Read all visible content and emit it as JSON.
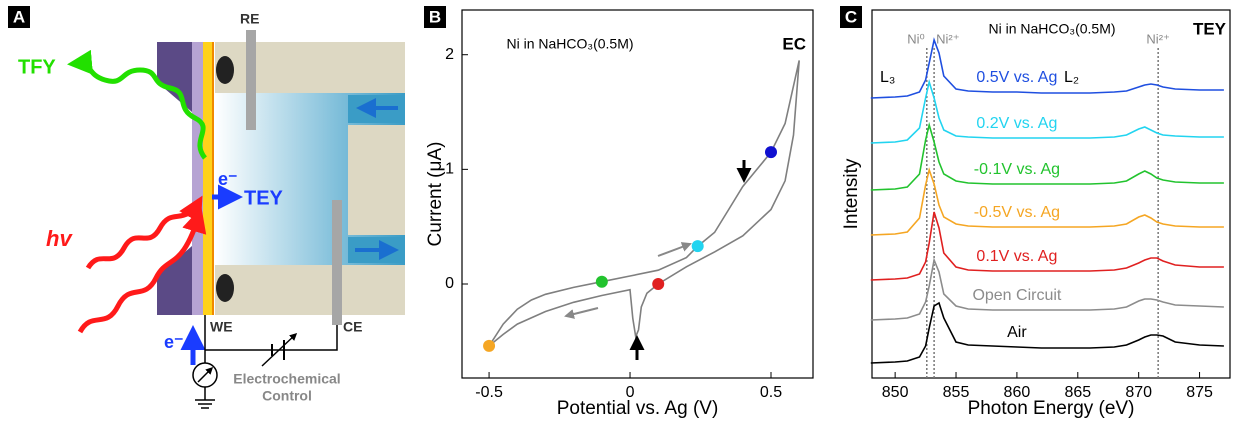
{
  "diagram": {
    "panel_label": "A",
    "labels": {
      "tfy": "TFY",
      "re": "RE",
      "electron_top": "e⁻",
      "tey": "TEY",
      "hv": "hv",
      "we": "WE",
      "ce": "CE",
      "electron_bottom": "e⁻",
      "control_1": "Electrochemical",
      "control_2": "Control"
    }
  },
  "chart_data": [
    {
      "type": "line",
      "panel_label": "B",
      "x_label": "Potential vs. Ag (V)",
      "y_label": "Current (μA)",
      "annotations": [
        "Ni in NaHCO₃(0.5M)",
        "EC"
      ],
      "xlim": [
        -0.596,
        0.649
      ],
      "ylim": [
        -0.82,
        2.39
      ],
      "xticks": [
        -0.5,
        0,
        0.5
      ],
      "yticks": [
        0,
        1,
        2
      ],
      "series": [
        {
          "kind": "line",
          "color": "#7f7f7f",
          "x": [
            -0.5,
            -0.45,
            -0.4,
            -0.35,
            -0.3,
            -0.2,
            -0.1,
            0,
            0.1,
            0.2,
            0.24,
            0.3,
            0.35,
            0.4,
            0.45,
            0.5,
            0.55,
            0.6,
            0.58,
            0.55,
            0.5,
            0.4,
            0.3,
            0.2,
            0.1,
            0.06,
            0.04,
            0.03,
            0.02,
            0.01,
            0,
            -0.1,
            -0.2,
            -0.3,
            -0.4,
            -0.45,
            -0.5
          ],
          "values": [
            -0.54,
            -0.35,
            -0.22,
            -0.14,
            -0.09,
            -0.03,
            0.02,
            0.07,
            0.12,
            0.23,
            0.33,
            0.45,
            0.65,
            0.85,
            1.0,
            1.15,
            1.4,
            1.95,
            1.3,
            0.9,
            0.65,
            0.42,
            0.28,
            0.15,
            0.0,
            -0.08,
            -0.2,
            -0.4,
            -0.46,
            -0.3,
            -0.05,
            -0.1,
            -0.16,
            -0.24,
            -0.35,
            -0.44,
            -0.54
          ]
        },
        {
          "kind": "scatter",
          "colors": [
            "#f5a623",
            "#22c32e",
            "#e02020",
            "#22d4f0",
            "#1010d0"
          ],
          "x": [
            -0.5,
            -0.1,
            0.1,
            0.24,
            0.5
          ],
          "values": [
            -0.54,
            0.02,
            0.0,
            0.33,
            1.15
          ]
        }
      ]
    },
    {
      "type": "line",
      "panel_label": "C",
      "x_label": "Photon Energy (eV)",
      "y_label": "Intensity",
      "annotations": [
        "Ni in NaHCO₃(0.5M)",
        "TEY",
        "L₃",
        "L₂"
      ],
      "xlim": [
        848.1,
        877.5
      ],
      "ylim": [
        20,
        388
      ],
      "xticks": [
        850,
        855,
        860,
        865,
        870,
        875
      ],
      "reference_lines": [
        {
          "x": 852.6,
          "label": "Ni⁰"
        },
        {
          "x": 853.2,
          "label": "Ni²⁺"
        },
        {
          "x": 871.6,
          "label": "Ni²⁺"
        }
      ],
      "x": [
        848,
        850,
        851,
        852,
        852.5,
        852.8,
        853.2,
        853.6,
        854,
        855,
        856,
        858,
        860,
        862,
        864,
        866,
        868,
        869,
        870,
        870.5,
        871,
        871.5,
        872,
        873,
        875,
        877
      ],
      "series": [
        {
          "kind": "line",
          "name": "0.5V vs. Ag",
          "color": "#1f4fe0",
          "values": [
            300,
            301,
            302,
            306,
            318,
            335,
            358,
            345,
            322,
            309,
            307,
            306,
            306,
            305,
            305,
            305,
            306,
            307,
            311,
            313,
            314,
            313,
            311,
            309,
            308,
            308
          ]
        },
        {
          "kind": "line",
          "name": "0.2V vs. Ag",
          "color": "#22d4f0",
          "values": [
            255,
            256,
            258,
            270,
            300,
            316,
            300,
            280,
            268,
            262,
            261,
            260,
            260,
            260,
            260,
            260,
            261,
            263,
            269,
            271,
            268,
            265,
            263,
            262,
            261,
            261
          ]
        },
        {
          "kind": "line",
          "name": "-0.1V vs. Ag",
          "color": "#22c32e",
          "values": [
            208,
            209,
            211,
            224,
            258,
            273,
            256,
            236,
            224,
            217,
            215,
            214,
            214,
            214,
            214,
            214,
            215,
            217,
            224,
            227,
            224,
            220,
            218,
            216,
            215,
            215
          ]
        },
        {
          "kind": "line",
          "name": "-0.5V vs. Ag",
          "color": "#f5a623",
          "values": [
            163,
            164,
            166,
            180,
            213,
            228,
            214,
            193,
            181,
            174,
            172,
            171,
            171,
            171,
            171,
            171,
            172,
            174,
            181,
            183,
            180,
            176,
            174,
            172,
            171,
            171
          ]
        },
        {
          "kind": "line",
          "name": "0.1V vs. Ag",
          "color": "#e02020",
          "values": [
            118,
            119,
            120,
            124,
            136,
            155,
            186,
            170,
            145,
            131,
            128,
            127,
            127,
            127,
            127,
            127,
            128,
            130,
            135,
            138,
            140,
            140,
            137,
            133,
            131,
            131
          ]
        },
        {
          "kind": "line",
          "name": "Open Circuit",
          "color": "#8c8c8c",
          "values": [
            78,
            79,
            80,
            84,
            96,
            112,
            138,
            126,
            104,
            92,
            89,
            88,
            88,
            88,
            88,
            88,
            89,
            91,
            97,
            99,
            99,
            98,
            96,
            93,
            92,
            91
          ]
        },
        {
          "kind": "line",
          "name": "Air",
          "color": "#000000",
          "values": [
            35,
            36,
            37,
            41,
            52,
            70,
            92,
            95,
            80,
            56,
            53,
            52,
            51,
            50,
            50,
            50,
            51,
            53,
            58,
            61,
            63,
            63,
            62,
            56,
            53,
            52
          ]
        }
      ]
    }
  ]
}
